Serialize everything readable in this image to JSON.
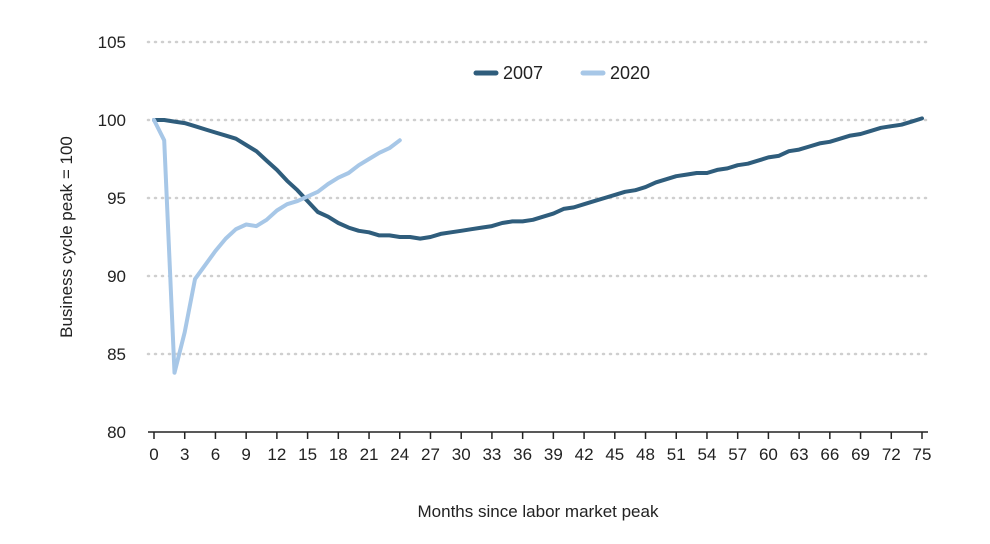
{
  "chart_data": {
    "type": "line",
    "title": "",
    "xlabel": "Months since labor market peak",
    "ylabel": "Business cycle peak = 100",
    "ylim": [
      80,
      105
    ],
    "xlim": [
      0,
      75
    ],
    "yticks": [
      80,
      85,
      90,
      95,
      100,
      105
    ],
    "xticks": [
      0,
      3,
      6,
      9,
      12,
      15,
      18,
      21,
      24,
      27,
      30,
      33,
      36,
      39,
      42,
      45,
      48,
      51,
      54,
      57,
      60,
      63,
      66,
      69,
      72,
      75
    ],
    "grid": "horizontal dotted",
    "legend": "top-center",
    "series": [
      {
        "name": "2007",
        "color": "#2f5d7c",
        "x": [
          0,
          1,
          2,
          3,
          4,
          5,
          6,
          7,
          8,
          9,
          10,
          11,
          12,
          13,
          14,
          15,
          16,
          17,
          18,
          19,
          20,
          21,
          22,
          23,
          24,
          25,
          26,
          27,
          28,
          29,
          30,
          31,
          32,
          33,
          34,
          35,
          36,
          37,
          38,
          39,
          40,
          41,
          42,
          43,
          44,
          45,
          46,
          47,
          48,
          49,
          50,
          51,
          52,
          53,
          54,
          55,
          56,
          57,
          58,
          59,
          60,
          61,
          62,
          63,
          64,
          65,
          66,
          67,
          68,
          69,
          70,
          71,
          72,
          73,
          74,
          75
        ],
        "values": [
          100.0,
          100.0,
          99.9,
          99.8,
          99.6,
          99.4,
          99.2,
          99.0,
          98.8,
          98.4,
          98.0,
          97.4,
          96.8,
          96.1,
          95.5,
          94.8,
          94.1,
          93.8,
          93.4,
          93.1,
          92.9,
          92.8,
          92.6,
          92.6,
          92.5,
          92.5,
          92.4,
          92.5,
          92.7,
          92.8,
          92.9,
          93.0,
          93.1,
          93.2,
          93.4,
          93.5,
          93.5,
          93.6,
          93.8,
          94.0,
          94.3,
          94.4,
          94.6,
          94.8,
          95.0,
          95.2,
          95.4,
          95.5,
          95.7,
          96.0,
          96.2,
          96.4,
          96.5,
          96.6,
          96.6,
          96.8,
          96.9,
          97.1,
          97.2,
          97.4,
          97.6,
          97.7,
          98.0,
          98.1,
          98.3,
          98.5,
          98.6,
          98.8,
          99.0,
          99.1,
          99.3,
          99.5,
          99.6,
          99.7,
          99.9,
          100.1
        ]
      },
      {
        "name": "2020",
        "color": "#a7c7e7",
        "x": [
          0,
          1,
          2,
          3,
          4,
          5,
          6,
          7,
          8,
          9,
          10,
          11,
          12,
          13,
          14,
          15,
          16,
          17,
          18,
          19,
          20,
          21,
          22,
          23,
          24
        ],
        "values": [
          100.0,
          98.7,
          83.8,
          86.4,
          89.8,
          90.7,
          91.6,
          92.4,
          93.0,
          93.3,
          93.2,
          93.6,
          94.2,
          94.6,
          94.8,
          95.1,
          95.4,
          95.9,
          96.3,
          96.6,
          97.1,
          97.5,
          97.9,
          98.2,
          98.7
        ]
      }
    ]
  }
}
